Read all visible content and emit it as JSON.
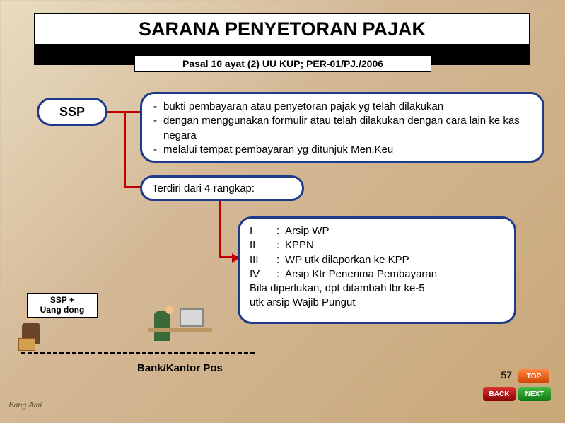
{
  "title": "SARANA PENYETORAN PAJAK",
  "subtitle": "Pasal 10 ayat (2) UU KUP; PER-01/PJ./2006",
  "ssp_label": "SSP",
  "desc": {
    "line1": "bukti pembayaran atau penyetoran pajak yg telah dilakukan",
    "line2": "dengan menggunakan formulir atau telah dilakukan dengan cara lain ke kas negara",
    "line3": "melalui tempat pembayaran yg ditunjuk Men.Keu"
  },
  "terdiri": "Terdiri dari 4 rangkap:",
  "rangkap": {
    "i": "Arsip WP",
    "ii": "KPPN",
    "iii": "WP utk dilaporkan ke KPP",
    "iv": "Arsip Ktr Penerima Pembayaran",
    "extra1": "Bila diperlukan, dpt ditambah lbr ke-5",
    "extra2": "utk arsip Wajib Pungut"
  },
  "sspplus": {
    "l1": "SSP +",
    "l2": "Uang dong"
  },
  "bank_label": "Bank/Kantor Pos",
  "page_num": "57",
  "author": "Bang Ami",
  "nav": {
    "top": "TOP",
    "back": "BACK",
    "next": "NEXT"
  }
}
